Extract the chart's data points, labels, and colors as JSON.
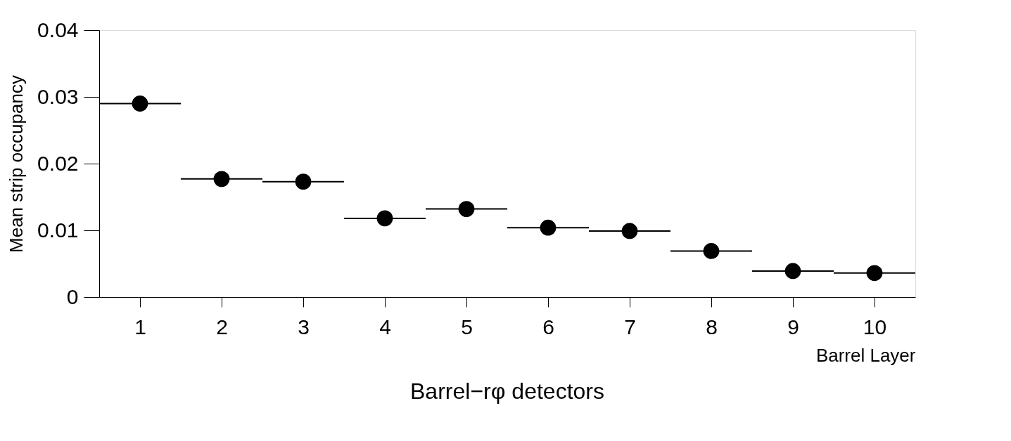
{
  "chart_data": {
    "type": "scatter",
    "title": "Barrel−rφ detectors",
    "xlabel": "Barrel Layer",
    "ylabel": "Mean strip occupancy",
    "x": [
      1,
      2,
      3,
      4,
      5,
      6,
      7,
      8,
      9,
      10
    ],
    "series": [
      {
        "color": "#000000",
        "values": [
          0.029,
          0.0177,
          0.0173,
          0.0118,
          0.0132,
          0.0104,
          0.0099,
          0.0069,
          0.0039,
          0.0036
        ],
        "xerrors": [
          0.5,
          0.5,
          0.5,
          0.5,
          0.5,
          0.5,
          0.5,
          0.5,
          0.5,
          0.5
        ]
      }
    ],
    "xlim": [
      0.5,
      10.5
    ],
    "xticks": [
      1,
      2,
      3,
      4,
      5,
      6,
      7,
      8,
      9,
      10
    ],
    "ylim": [
      0,
      0.04
    ],
    "yticks": [
      0,
      0.01,
      0.02,
      0.03,
      0.04
    ],
    "marker": "circle",
    "grid": false
  }
}
